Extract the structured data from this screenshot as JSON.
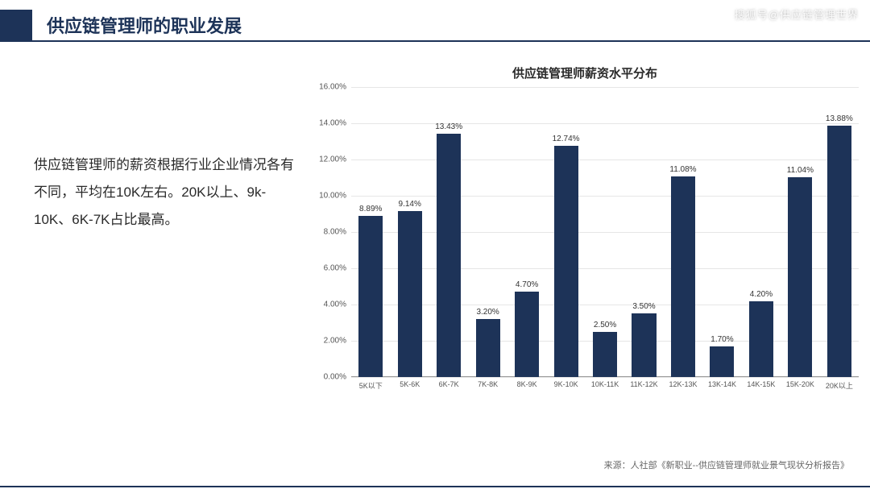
{
  "header": {
    "title": "供应链管理师的职业发展",
    "accent_color": "#1d3358",
    "title_color": "#1d3358",
    "title_fontsize": 22
  },
  "watermark": "搜狐号@供应链管理世界",
  "body_text": "供应链管理师的薪资根据行业企业情况各有不同，平均在10K左右。20K以上、9k-10K、6K-7K占比最高。",
  "chart": {
    "type": "bar",
    "title": "供应链管理师薪资水平分布",
    "title_fontsize": 15,
    "title_weight": 700,
    "categories": [
      "5K以下",
      "5K-6K",
      "6K-7K",
      "7K-8K",
      "8K-9K",
      "9K-10K",
      "10K-11K",
      "11K-12K",
      "12K-13K",
      "13K-14K",
      "14K-15K",
      "15K-20K",
      "20K以上"
    ],
    "values": [
      8.89,
      9.14,
      13.43,
      3.2,
      4.7,
      12.74,
      2.5,
      3.5,
      11.08,
      1.7,
      4.2,
      11.04,
      13.88
    ],
    "value_suffix": "%",
    "bar_color": "#1d3358",
    "bar_width_ratio": 0.62,
    "y": {
      "min": 0,
      "max": 16,
      "step": 2,
      "format": "fixed2pct",
      "label_fontsize": 10,
      "label_color": "#555"
    },
    "x": {
      "label_fontsize": 9,
      "label_color": "#555"
    },
    "grid_color": "#e6e6e6",
    "background_color": "#ffffff",
    "value_label_fontsize": 10
  },
  "source": "来源：人社部《新职业--供应链管理师就业景气现状分析报告》",
  "colors": {
    "rule": "#1d3358",
    "text": "#2a2a2a",
    "muted": "#666"
  }
}
